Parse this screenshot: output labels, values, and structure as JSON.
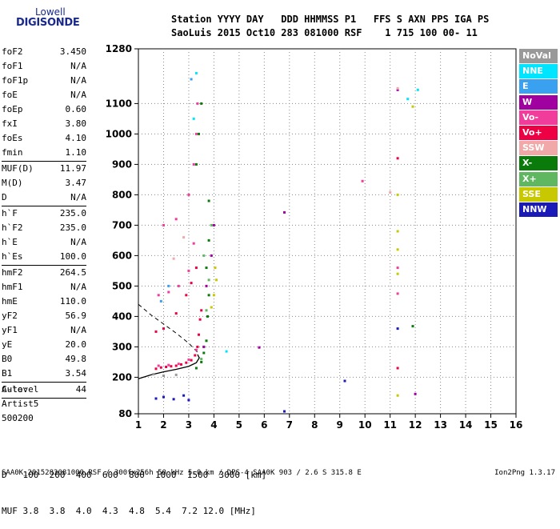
{
  "logo": {
    "line1": "Lowell",
    "line2": "DIGISONDE"
  },
  "header": {
    "line1": "Station YYYY DAY   DDD HHMMSS P1   FFS S AXN PPS IGA PS",
    "line2": "SaoLuis 2015 Oct10 283 081000 RSF    1 715 100 00- 11"
  },
  "params": [
    {
      "k": "foF2",
      "v": "3.450"
    },
    {
      "k": "foF1",
      "v": "N/A"
    },
    {
      "k": "foF1p",
      "v": "N/A"
    },
    {
      "k": "foE",
      "v": "N/A"
    },
    {
      "k": "foEp",
      "v": "0.60"
    },
    {
      "k": "fxI",
      "v": "3.80"
    },
    {
      "k": "foEs",
      "v": "4.10"
    },
    {
      "k": "fmin",
      "v": "1.10"
    },
    {
      "sep": true
    },
    {
      "k": "MUF(D)",
      "v": "11.97"
    },
    {
      "k": "M(D)",
      "v": "3.47"
    },
    {
      "k": "D",
      "v": "N/A"
    },
    {
      "sep": true
    },
    {
      "k": "h`F",
      "v": "235.0"
    },
    {
      "k": "h`F2",
      "v": "235.0"
    },
    {
      "k": "h`E",
      "v": "N/A"
    },
    {
      "k": "h`Es",
      "v": "100.0"
    },
    {
      "sep": true
    },
    {
      "k": "hmF2",
      "v": "264.5"
    },
    {
      "k": "hmF1",
      "v": "N/A"
    },
    {
      "k": "hmE",
      "v": "110.0"
    },
    {
      "k": "yF2",
      "v": "56.9"
    },
    {
      "k": "yF1",
      "v": "N/A"
    },
    {
      "k": "yE",
      "v": "20.0"
    },
    {
      "k": "B0",
      "v": "49.8"
    },
    {
      "k": "B1",
      "v": "3.54"
    },
    {
      "sep": true
    },
    {
      "k": "C-level",
      "v": "44"
    },
    {
      "sep": true
    }
  ],
  "auto": {
    "line1": "Auto:",
    "line2": "Artist5",
    "line3": "500200"
  },
  "muf_table": {
    "d_label": "D",
    "d_values": [
      "100",
      "200",
      "400",
      "600",
      "800",
      "1000",
      "1500",
      "3000"
    ],
    "d_unit": "[km]",
    "muf_label": "MUF",
    "muf_values": [
      "3.8",
      "3.8",
      "4.0",
      "4.3",
      "4.8",
      "5.4",
      "7.2",
      "12.0"
    ],
    "muf_unit": "[MHz]"
  },
  "footer": {
    "left": "SAA0K_2015283081000.RSF / 300fx256h 50 kHz 5.0 km / DPS-4 SAA0K 903 / 2.6 S 315.8 E",
    "right": "Ion2Png 1.3.17"
  },
  "legend": [
    {
      "label": "NoVal",
      "color": "#999999"
    },
    {
      "label": "NNE",
      "color": "#00e5ff"
    },
    {
      "label": "E",
      "color": "#3aa0f0"
    },
    {
      "label": "W",
      "color": "#a000a0"
    },
    {
      "label": "Vo-",
      "color": "#f03c9a"
    },
    {
      "label": "Vo+",
      "color": "#ee0044"
    },
    {
      "label": "SSW",
      "color": "#f0a8a8"
    },
    {
      "label": "X-",
      "color": "#0a7a0a"
    },
    {
      "label": "X+",
      "color": "#5fb75f"
    },
    {
      "label": "SSE",
      "color": "#c8c800"
    },
    {
      "label": "NNW",
      "color": "#1a1ab8"
    }
  ],
  "chart_data": {
    "type": "scatter",
    "xlabel": "",
    "ylabel": "",
    "xlim": [
      1,
      16
    ],
    "ylim": [
      80,
      1280
    ],
    "x_ticks": [
      "1",
      "2",
      "3",
      "4",
      "5",
      "6",
      "7",
      "8",
      "9",
      "10",
      "11",
      "12",
      "13",
      "14",
      "15",
      "16"
    ],
    "y_ticks": [
      "80",
      "200",
      "300",
      "400",
      "500",
      "600",
      "700",
      "800",
      "900",
      "1000",
      "1100",
      "1280"
    ],
    "grid": "dotted",
    "series": [
      {
        "name": "Vo+",
        "points": [
          [
            1.7,
            228
          ],
          [
            1.9,
            232
          ],
          [
            2.1,
            234
          ],
          [
            2.3,
            236
          ],
          [
            2.5,
            238
          ],
          [
            2.7,
            242
          ],
          [
            2.9,
            248
          ],
          [
            3.1,
            256
          ],
          [
            3.25,
            272
          ],
          [
            3.35,
            300
          ],
          [
            3.4,
            340
          ],
          [
            3.45,
            390
          ],
          [
            3.5,
            420
          ],
          [
            1.7,
            350
          ],
          [
            2.0,
            360
          ],
          [
            2.5,
            410
          ],
          [
            2.9,
            470
          ],
          [
            3.1,
            510
          ],
          [
            3.3,
            560
          ],
          [
            11.3,
            230
          ],
          [
            11.3,
            920
          ]
        ]
      },
      {
        "name": "Vo-",
        "points": [
          [
            1.8,
            238
          ],
          [
            2.2,
            240
          ],
          [
            2.6,
            244
          ],
          [
            3.0,
            258
          ],
          [
            3.3,
            290
          ],
          [
            1.8,
            470
          ],
          [
            2.2,
            480
          ],
          [
            2.6,
            500
          ],
          [
            3.0,
            550
          ],
          [
            3.2,
            640
          ],
          [
            2.0,
            700
          ],
          [
            2.5,
            720
          ],
          [
            3.0,
            800
          ],
          [
            3.2,
            900
          ],
          [
            3.3,
            1000
          ],
          [
            3.35,
            1100
          ],
          [
            9.9,
            845
          ],
          [
            11.3,
            475
          ],
          [
            11.3,
            560
          ]
        ]
      },
      {
        "name": "X-",
        "points": [
          [
            3.3,
            230
          ],
          [
            3.5,
            250
          ],
          [
            3.6,
            280
          ],
          [
            3.7,
            320
          ],
          [
            3.75,
            400
          ],
          [
            3.8,
            470
          ],
          [
            3.7,
            560
          ],
          [
            3.8,
            650
          ],
          [
            3.8,
            780
          ],
          [
            3.3,
            900
          ],
          [
            3.4,
            1000
          ],
          [
            3.5,
            1100
          ],
          [
            11.9,
            368
          ]
        ]
      },
      {
        "name": "X+",
        "points": [
          [
            3.5,
            260
          ],
          [
            3.6,
            300
          ],
          [
            3.7,
            420
          ],
          [
            3.8,
            520
          ],
          [
            3.6,
            600
          ],
          [
            3.9,
            700
          ]
        ]
      },
      {
        "name": "W",
        "points": [
          [
            3.6,
            300
          ],
          [
            3.7,
            500
          ],
          [
            3.9,
            600
          ],
          [
            4.0,
            700
          ],
          [
            5.8,
            298
          ],
          [
            6.8,
            742
          ],
          [
            11.3,
            1145
          ],
          [
            12.0,
            145
          ]
        ]
      },
      {
        "name": "SSE",
        "points": [
          [
            3.9,
            430
          ],
          [
            4.0,
            470
          ],
          [
            4.1,
            520
          ],
          [
            4.05,
            560
          ],
          [
            11.3,
            540
          ],
          [
            11.3,
            620
          ],
          [
            11.3,
            680
          ],
          [
            11.3,
            800
          ],
          [
            11.9,
            1090
          ],
          [
            11.3,
            140
          ]
        ]
      },
      {
        "name": "NNE",
        "points": [
          [
            3.2,
            1050
          ],
          [
            3.3,
            1200
          ],
          [
            4.5,
            285
          ],
          [
            11.7,
            1115
          ],
          [
            12.1,
            1145
          ]
        ]
      },
      {
        "name": "E",
        "points": [
          [
            1.9,
            450
          ],
          [
            2.2,
            500
          ],
          [
            3.1,
            1180
          ]
        ]
      },
      {
        "name": "SSW",
        "points": [
          [
            2.4,
            590
          ],
          [
            2.8,
            660
          ],
          [
            11.0,
            808
          ],
          [
            11.3,
            1150
          ]
        ]
      },
      {
        "name": "NNW",
        "points": [
          [
            1.7,
            130
          ],
          [
            2.0,
            135
          ],
          [
            2.4,
            128
          ],
          [
            2.8,
            140
          ],
          [
            3.0,
            125
          ],
          [
            6.8,
            88
          ],
          [
            9.2,
            188
          ],
          [
            11.3,
            360
          ]
        ]
      },
      {
        "name": "NoVal",
        "points": [
          [
            1.6,
            210
          ],
          [
            2.0,
            205
          ],
          [
            2.5,
            208
          ]
        ]
      }
    ],
    "profile_curve": [
      [
        1.0,
        195
      ],
      [
        1.5,
        208
      ],
      [
        2.0,
        218
      ],
      [
        2.5,
        226
      ],
      [
        3.0,
        236
      ],
      [
        3.3,
        248
      ],
      [
        3.42,
        264
      ],
      [
        3.35,
        275
      ]
    ],
    "dashed_line": [
      [
        1.0,
        440
      ],
      [
        1.5,
        405
      ],
      [
        2.0,
        375
      ],
      [
        2.5,
        345
      ],
      [
        3.0,
        312
      ],
      [
        3.35,
        282
      ]
    ]
  }
}
